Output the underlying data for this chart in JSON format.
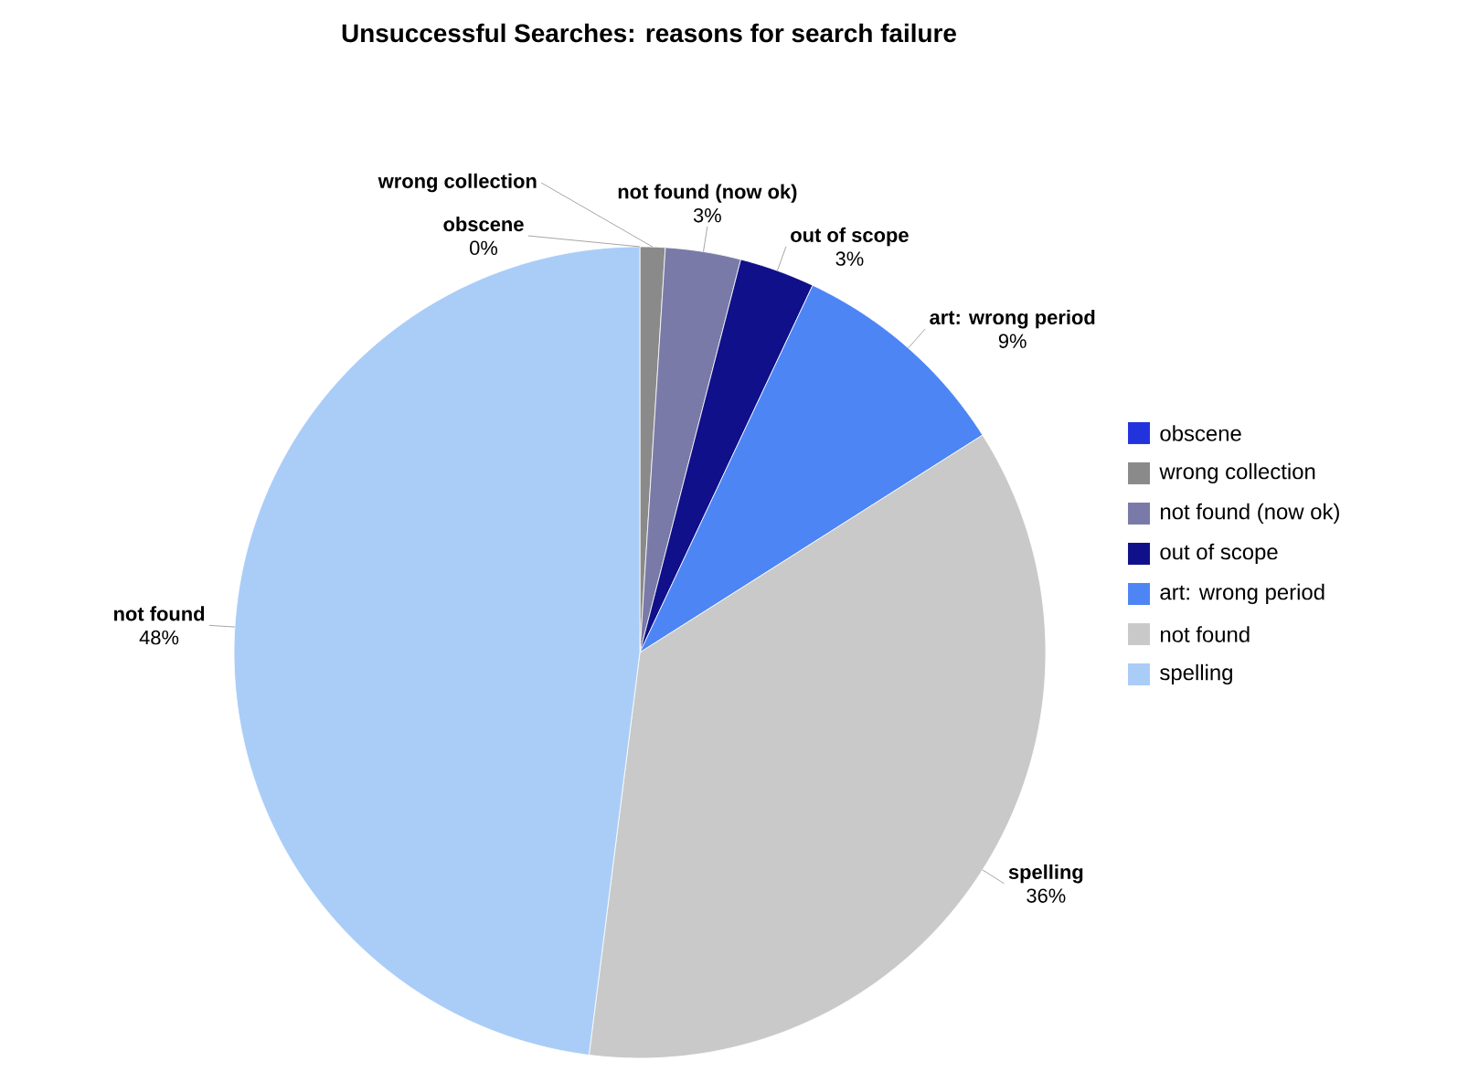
{
  "chart_data": {
    "type": "pie",
    "title": "Unsuccessful Searches: reasons for search failure",
    "categories": [
      "obscene",
      "wrong collection",
      "not found (now ok)",
      "out of scope",
      "art: wrong period",
      "not found",
      "spelling"
    ],
    "values": [
      0,
      1,
      3,
      3,
      9,
      36,
      48
    ],
    "colors": [
      "#2233dd",
      "#8a8a8a",
      "#7a7aa8",
      "#10108a",
      "#4d85f5",
      "#c9c9c9",
      "#a9cdf7"
    ],
    "value_labels": [
      "0%",
      null,
      "3%",
      "3%",
      "9%",
      "36%",
      "48%"
    ],
    "annotations": [
      "obscene",
      "wrong collection",
      "not found (now ok)",
      "out of scope",
      "art: wrong period",
      "spelling",
      "not found"
    ],
    "legend": "right"
  }
}
